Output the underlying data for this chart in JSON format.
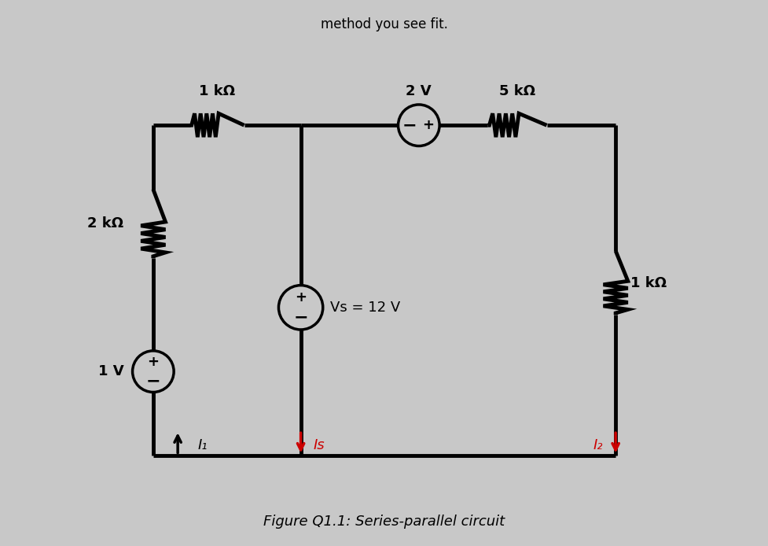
{
  "bg_color": "#c8c8c8",
  "line_color": "#000000",
  "line_width": 3.5,
  "red_color": "#cc0000",
  "title": "Figure Q1.1: Series-parallel circuit",
  "title_fontsize": 13,
  "header_text": "method you see fit.",
  "label_1kohm_top": "1 kΩ",
  "label_2V": "2 V",
  "label_5kohm": "5 kΩ",
  "label_2kohm": "2 kΩ",
  "label_1kohm_right": "1 kΩ",
  "label_1V": "1 V",
  "label_Vs": "Vs = 12 V",
  "label_I1": "I₁",
  "label_Is": "Is",
  "label_I2": "I₂"
}
